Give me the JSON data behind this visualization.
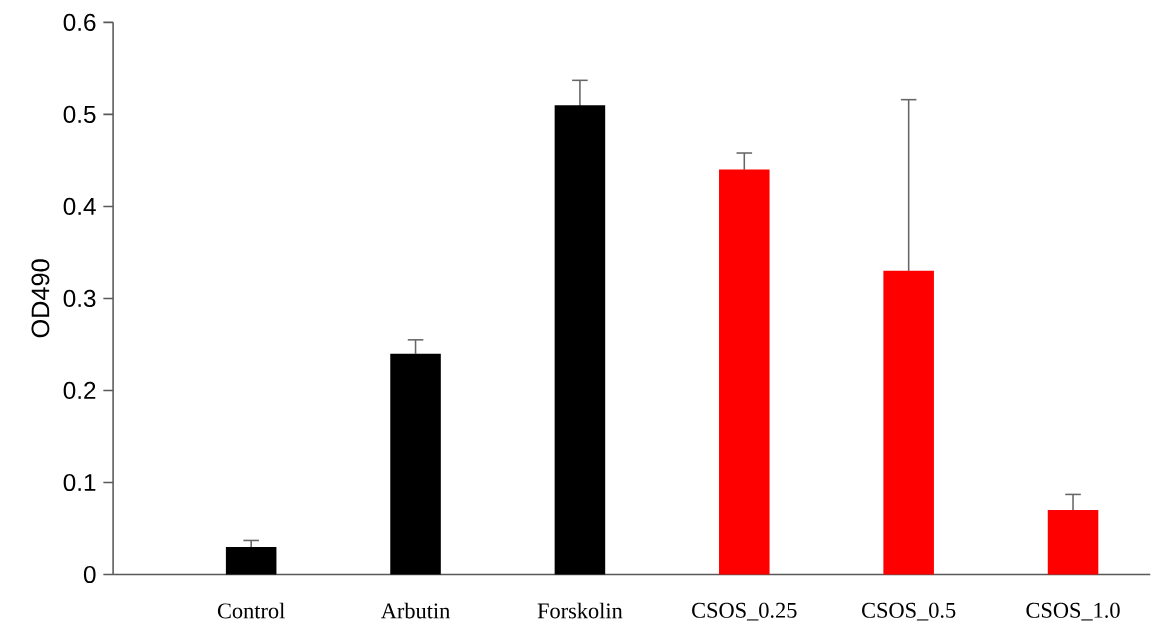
{
  "chart_data": {
    "type": "bar",
    "ylabel": "OD490",
    "categories": [
      "Control",
      "Arbutin",
      "Forskolin",
      "CSOS_0.25",
      "CSOS_0.5",
      "CSOS_1.0"
    ],
    "values": [
      0.03,
      0.24,
      0.51,
      0.44,
      0.33,
      0.07
    ],
    "errors": [
      0.007,
      0.015,
      0.027,
      0.018,
      0.186,
      0.017
    ],
    "colors": [
      "#000000",
      "#000000",
      "#000000",
      "#ff0000",
      "#ff0000",
      "#ff0000"
    ],
    "ylim": [
      0,
      0.6
    ],
    "yticks": [
      0,
      0.1,
      0.2,
      0.3,
      0.4,
      0.5,
      0.6
    ],
    "grid": false
  }
}
